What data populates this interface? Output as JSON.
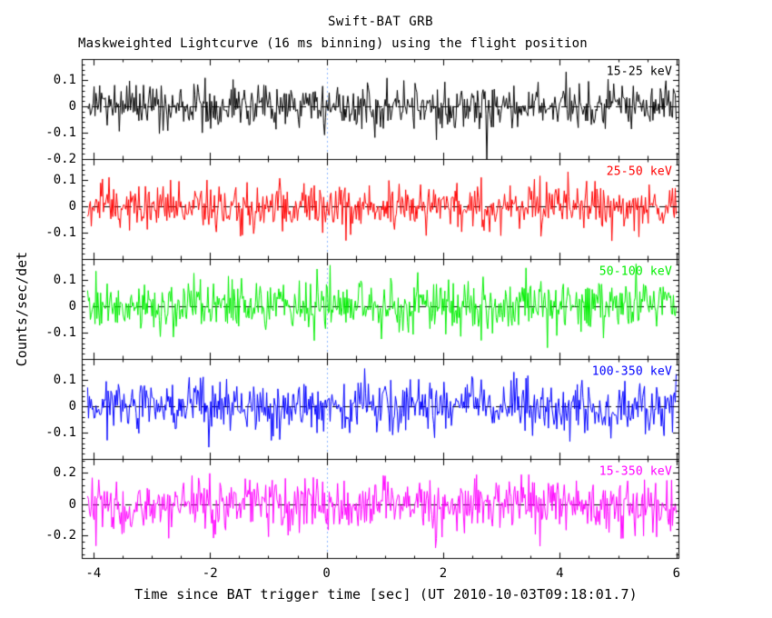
{
  "page": {
    "background": "#ffffff",
    "text_color": "#000000"
  },
  "chart_data": {
    "type": "line",
    "title": "Swift-BAT GRB",
    "subtitle": "Maskweighted Lightcurve (16 ms binning) using the flight position",
    "xlabel": "Time since BAT trigger time [sec] (UT 2010-10-03T09:18:01.7)",
    "ylabel": "Counts/sec/det",
    "xlim": [
      -4.2,
      6.05
    ],
    "x_ticks": [
      -4,
      -2,
      0,
      2,
      4,
      6
    ],
    "x_tick_labels": [
      "-4",
      "-2",
      "0",
      "2",
      "4",
      "6"
    ],
    "x_minor_step": 0.5,
    "bin_seconds": 0.016,
    "x_data_start": -4.1,
    "x_data_end": 6.0,
    "trigger_time_x": 0,
    "trigger_line_color": "#8ab4ff",
    "grid": false,
    "legend_position": "inside-right-per-panel",
    "noise_seed": 20101003,
    "panels": [
      {
        "label": "15-25 keV",
        "color": "#000000",
        "ylim": [
          -0.2,
          0.18
        ],
        "ytick_values": [
          0.1,
          0,
          -0.1,
          -0.2
        ],
        "ytick_labels": [
          "0.1",
          "0",
          "-0.1",
          "-0.2"
        ],
        "mean": 0,
        "noise_sigma": 0.042,
        "outlier_x": 2.75,
        "outlier_y": -0.21
      },
      {
        "label": "25-50 keV",
        "color": "#ff0000",
        "ylim": [
          -0.2,
          0.18
        ],
        "ytick_values": [
          0.1,
          0,
          -0.1
        ],
        "ytick_labels": [
          "0.1",
          "0",
          "-0.1"
        ],
        "mean": 0,
        "noise_sigma": 0.046
      },
      {
        "label": "50-100 keV",
        "color": "#00ee00",
        "ylim": [
          -0.2,
          0.18
        ],
        "ytick_values": [
          0.1,
          0,
          -0.1
        ],
        "ytick_labels": [
          "0.1",
          "0",
          "-0.1"
        ],
        "mean": 0,
        "noise_sigma": 0.05
      },
      {
        "label": "100-350 keV",
        "color": "#0000ff",
        "ylim": [
          -0.2,
          0.18
        ],
        "ytick_values": [
          0.1,
          0,
          -0.1
        ],
        "ytick_labels": [
          "0.1",
          "0",
          "-0.1"
        ],
        "mean": 0,
        "noise_sigma": 0.05
      },
      {
        "label": "15-350 keV",
        "color": "#ff00ff",
        "ylim": [
          -0.35,
          0.29
        ],
        "ytick_values": [
          0.2,
          0,
          -0.2
        ],
        "ytick_labels": [
          "0.2",
          "0",
          "-0.2"
        ],
        "mean": 0,
        "noise_sigma": 0.09
      }
    ]
  }
}
